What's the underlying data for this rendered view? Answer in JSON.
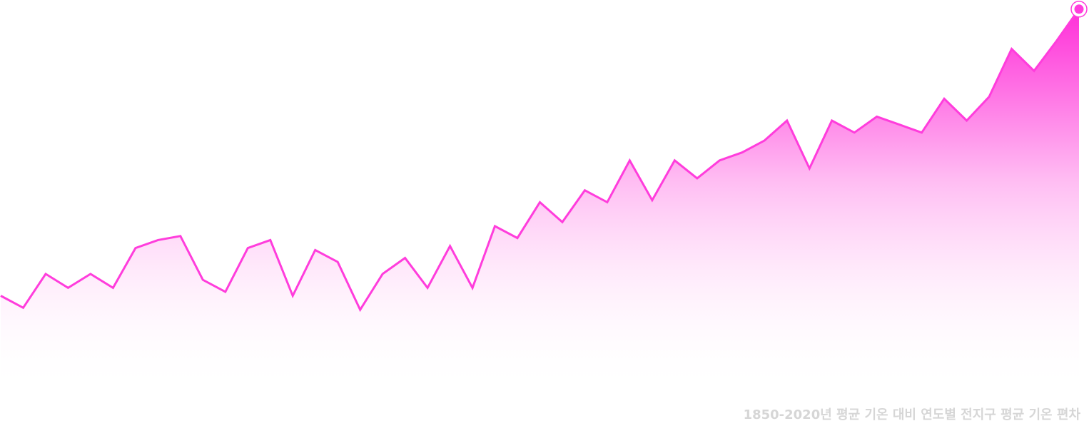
{
  "caption": "1850-2020년 평균 기온 대비 연도별 전지구 평균 기온 편차",
  "colors": {
    "line": "#ff3ddc",
    "fill_top": "#ff2fd8",
    "fill_bottom": "#ffffff",
    "caption": "#d6d6d6"
  },
  "chart_data": {
    "type": "area",
    "title": "",
    "xlabel": "",
    "ylabel": "",
    "grid": false,
    "legend": "none",
    "series": [
      {
        "values": [
          -0.26,
          -0.32,
          -0.15,
          -0.22,
          -0.15,
          -0.22,
          -0.02,
          0.02,
          0.04,
          -0.18,
          -0.24,
          -0.02,
          0.02,
          -0.26,
          -0.03,
          -0.09,
          -0.33,
          -0.15,
          -0.07,
          -0.22,
          -0.01,
          -0.22,
          0.09,
          0.03,
          0.21,
          0.11,
          0.27,
          0.21,
          0.42,
          0.22,
          0.42,
          0.33,
          0.42,
          0.46,
          0.52,
          0.62,
          0.38,
          0.62,
          0.56,
          0.64,
          0.6,
          0.56,
          0.73,
          0.62,
          0.74,
          0.98,
          0.87,
          1.02,
          1.18
        ]
      }
    ]
  }
}
